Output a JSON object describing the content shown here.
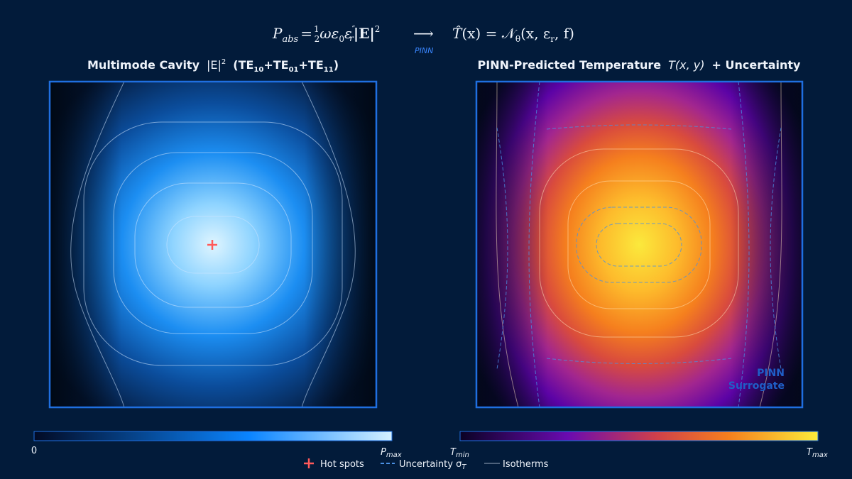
{
  "formula": {
    "left": [
      "P",
      "abs",
      "=",
      "1",
      "2",
      "ωε",
      "0",
      "ε",
      "″",
      "r",
      "|E|",
      "2"
    ],
    "arrow": "⟶",
    "arrow_label": "PINN",
    "right": [
      "T̂",
      "(x) = ",
      "𝒩",
      "θ",
      "(x, ε",
      "r",
      ", f)"
    ]
  },
  "left_panel": {
    "title": [
      "Multimode Cavity",
      "|E|",
      "2",
      "(TE",
      "10",
      "+TE",
      "01",
      "+TE",
      "11",
      ")"
    ],
    "colorbar": {
      "min_label": "0",
      "max_label": [
        "P",
        "max"
      ]
    }
  },
  "right_panel": {
    "title": [
      "PINN-Predicted Temperature",
      "T(x, y)",
      "+ Uncertainty"
    ],
    "watermark": [
      "PINN",
      "Surrogate"
    ],
    "colorbar": {
      "min_label": [
        "T",
        "min"
      ],
      "max_label": [
        "T",
        "max"
      ]
    }
  },
  "legend": [
    {
      "label": "Hot spots"
    },
    {
      "label": [
        "Uncertainty σ",
        "T"
      ]
    },
    {
      "label": "Isotherms"
    }
  ]
}
